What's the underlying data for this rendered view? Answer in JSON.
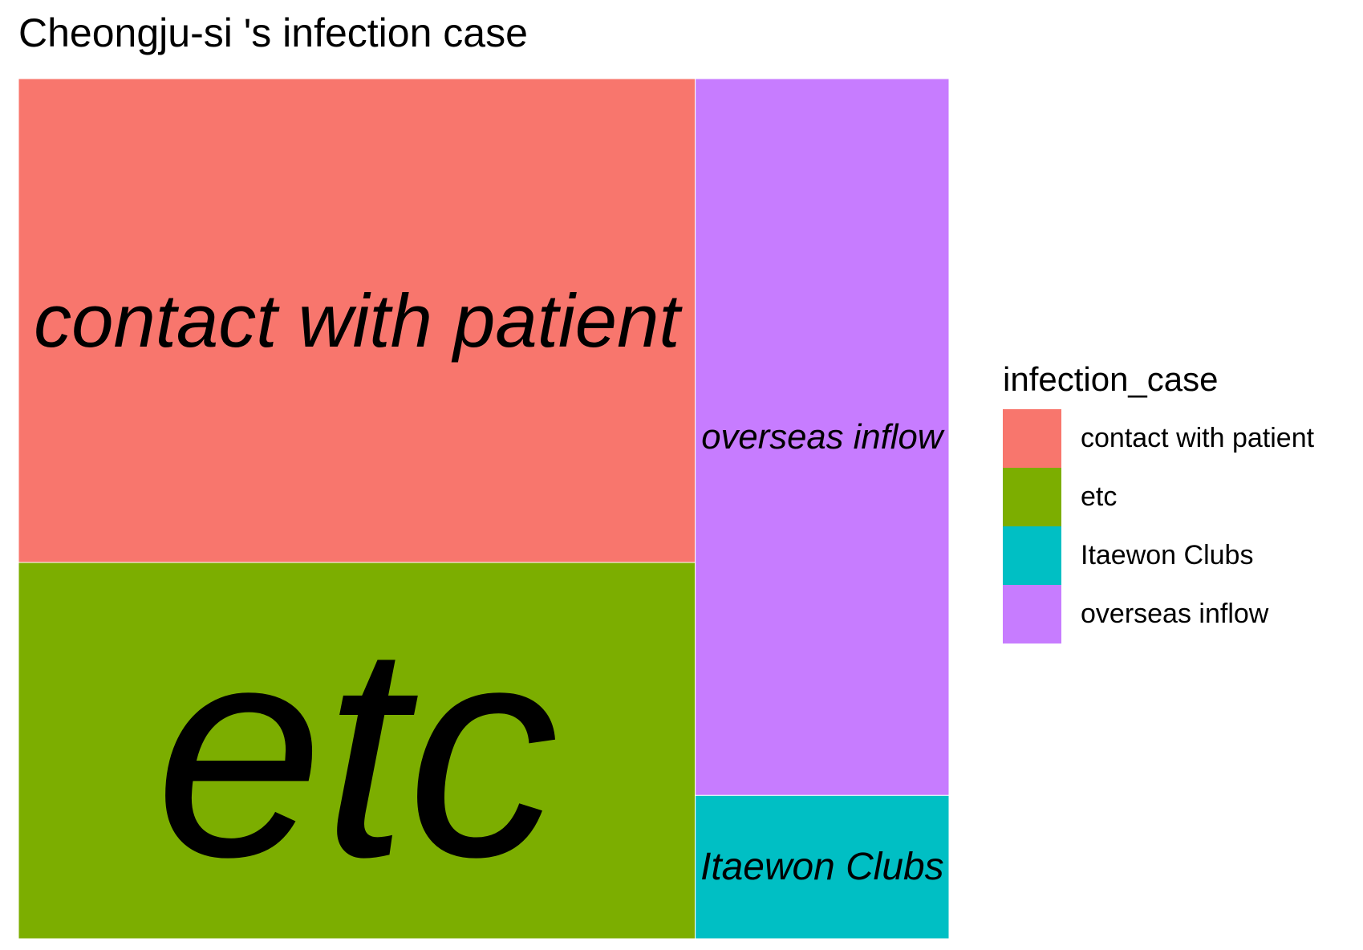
{
  "chart_data": {
    "type": "treemap",
    "title": "Cheongju-si 's infection case",
    "legend": {
      "title": "infection_case",
      "position": "right",
      "entries": [
        {
          "label": "contact with patient",
          "color": "#F8766D"
        },
        {
          "label": "etc",
          "color": "#7CAE00"
        },
        {
          "label": "Itaewon Clubs",
          "color": "#00BFC4"
        },
        {
          "label": "overseas inflow",
          "color": "#C77CFF"
        }
      ]
    },
    "tiles": [
      {
        "label": "contact with patient",
        "value": 9,
        "color": "#F8766D"
      },
      {
        "label": "etc",
        "value": 7,
        "color": "#7CAE00"
      },
      {
        "label": "overseas inflow",
        "value": 5,
        "color": "#C77CFF"
      },
      {
        "label": "Itaewon Clubs",
        "value": 1,
        "color": "#00BFC4"
      }
    ]
  }
}
